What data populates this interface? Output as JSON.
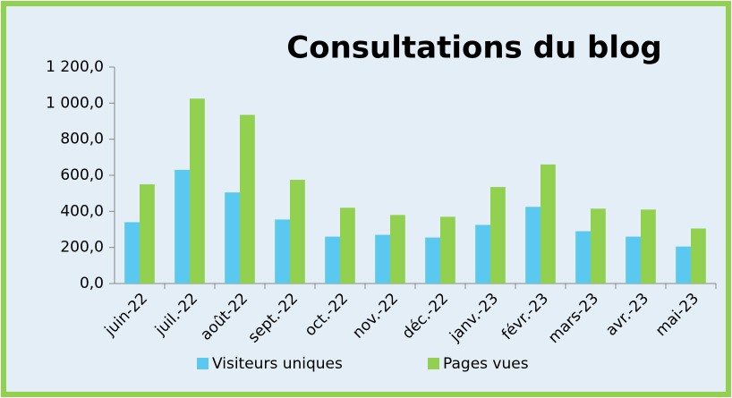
{
  "chart_data": {
    "type": "bar",
    "title": "Consultations du blog",
    "categories": [
      "juin-22",
      "juil.-22",
      "août-22",
      "sept.-22",
      "oct.-22",
      "nov.-22",
      "déc.-22",
      "janv.-23",
      "févr.-23",
      "mars-23",
      "avr.-23",
      "mai-23"
    ],
    "series": [
      {
        "name": "Visiteurs uniques",
        "color": "#5bc8f0",
        "values": [
          340,
          630,
          505,
          355,
          260,
          270,
          255,
          325,
          425,
          290,
          260,
          205
        ]
      },
      {
        "name": "Pages vues",
        "color": "#92d050",
        "values": [
          550,
          1025,
          935,
          575,
          420,
          380,
          370,
          535,
          660,
          415,
          410,
          305
        ]
      }
    ],
    "ylim": [
      0,
      1200
    ],
    "yticks": [
      {
        "value": 0,
        "label": "0,0"
      },
      {
        "value": 200,
        "label": "200,0"
      },
      {
        "value": 400,
        "label": "400,0"
      },
      {
        "value": 600,
        "label": "600,0"
      },
      {
        "value": 800,
        "label": "800,0"
      },
      {
        "value": 1000,
        "label": "1 000,0"
      },
      {
        "value": 1200,
        "label": "1 200,0"
      }
    ],
    "legend": "bottom"
  }
}
